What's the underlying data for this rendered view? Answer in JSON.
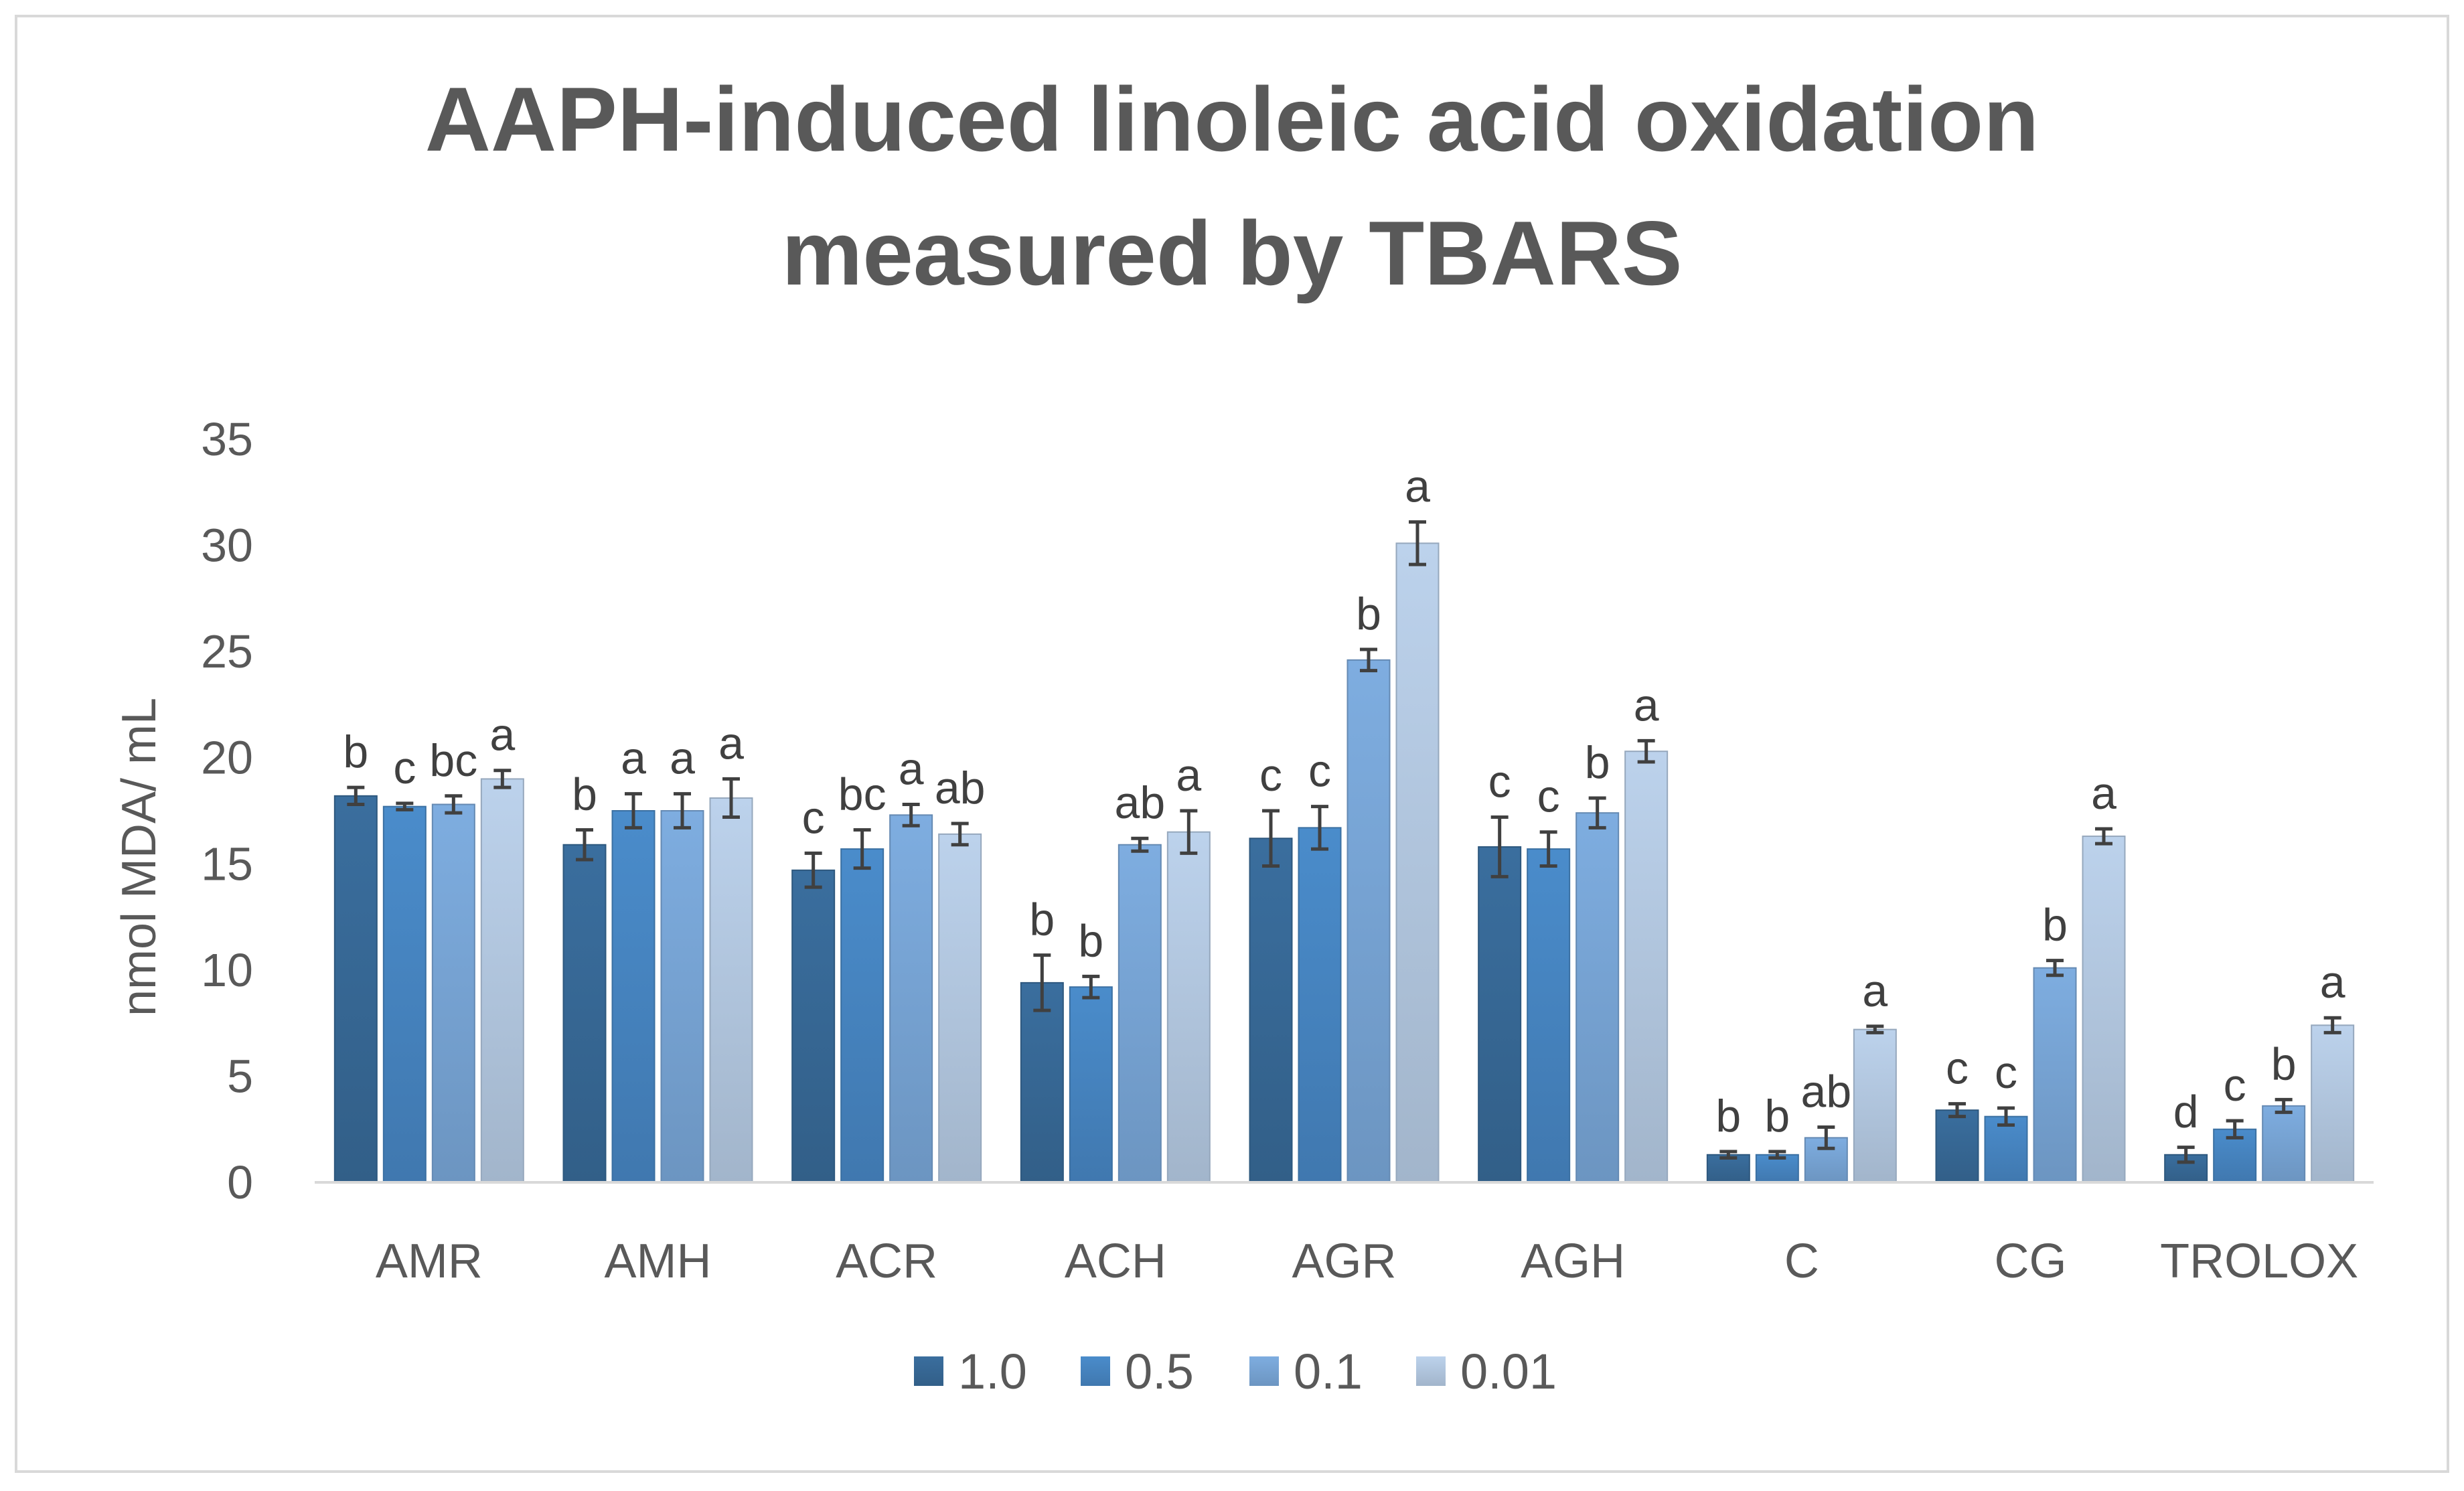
{
  "chart_data": {
    "type": "bar",
    "title_lines": [
      "AAPH-induced linoleic acid oxidation",
      "measured by TBARS"
    ],
    "xlabel": "",
    "ylabel": "nmol MDA/ mL",
    "ylim": [
      0,
      35
    ],
    "yticks": [
      "0",
      "5",
      "10",
      "15",
      "20",
      "25",
      "30",
      "35"
    ],
    "grid": false,
    "legend_position": "bottom",
    "categories": [
      "AMR",
      "AMH",
      "ACR",
      "ACH",
      "AGR",
      "AGH",
      "C",
      "CG",
      "TROLOX"
    ],
    "series": [
      {
        "name": "1.0",
        "color": "#3A6E9E",
        "values": [
          18.2,
          15.9,
          14.7,
          9.4,
          16.2,
          15.8,
          1.3,
          3.4,
          1.3
        ],
        "errors": [
          0.4,
          0.7,
          0.8,
          1.3,
          1.3,
          1.4,
          0.15,
          0.3,
          0.35
        ],
        "labels": [
          "b",
          "b",
          "c",
          "b",
          "c",
          "c",
          "b",
          "c",
          "d"
        ]
      },
      {
        "name": "0.5",
        "color": "#4A8CCB",
        "values": [
          17.7,
          17.5,
          15.7,
          9.2,
          16.7,
          15.7,
          1.3,
          3.1,
          2.5
        ],
        "errors": [
          0.15,
          0.8,
          0.9,
          0.5,
          1.0,
          0.8,
          0.15,
          0.4,
          0.4
        ],
        "labels": [
          "c",
          "a",
          "bc",
          "b",
          "c",
          "c",
          "b",
          "c",
          "c"
        ]
      },
      {
        "name": "0.1",
        "color": "#7EADE0",
        "values": [
          17.8,
          17.5,
          17.3,
          15.9,
          24.6,
          17.4,
          2.1,
          10.1,
          3.6
        ],
        "errors": [
          0.4,
          0.8,
          0.5,
          0.3,
          0.5,
          0.7,
          0.5,
          0.35,
          0.3
        ],
        "labels": [
          "bc",
          "a",
          "a",
          "ab",
          "b",
          "b",
          "ab",
          "b",
          "b"
        ]
      },
      {
        "name": "0.01",
        "color": "#BCD2EC",
        "values": [
          19.0,
          18.1,
          16.4,
          16.5,
          30.1,
          20.3,
          7.2,
          16.3,
          7.4
        ],
        "errors": [
          0.4,
          0.9,
          0.5,
          1.0,
          1.0,
          0.5,
          0.15,
          0.35,
          0.35
        ],
        "labels": [
          "a",
          "a",
          "ab",
          "a",
          "a",
          "a",
          "a",
          "a",
          "a"
        ]
      }
    ]
  }
}
